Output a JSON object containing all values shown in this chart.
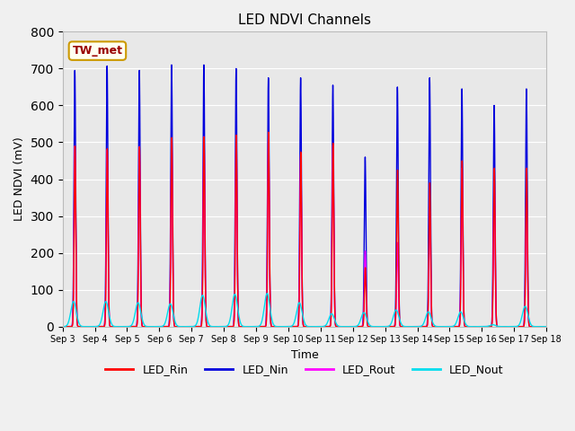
{
  "title": "LED NDVI Channels",
  "xlabel": "Time",
  "ylabel": "LED NDVI (mV)",
  "ylim": [
    0,
    800
  ],
  "background_color": "#f0f0f0",
  "plot_bg_color": "#e8e8e8",
  "annotation_text": "TW_met",
  "annotation_bg": "#fffff0",
  "annotation_border": "#cc9900",
  "annotation_text_color": "#990000",
  "series_colors": {
    "LED_Rin": "#ff0000",
    "LED_Nin": "#0000dd",
    "LED_Rout": "#ff00ff",
    "LED_Nout": "#00ddee"
  },
  "legend_labels": [
    "LED_Rin",
    "LED_Nin",
    "LED_Rout",
    "LED_Nout"
  ],
  "x_tick_labels": [
    "Sep 3",
    "Sep 4",
    "Sep 5",
    "Sep 6",
    "Sep 7",
    "Sep 8",
    "Sep 9",
    "Sep 10",
    "Sep 11",
    "Sep 12",
    "Sep 13",
    "Sep 14",
    "Sep 15",
    "Sep 16",
    "Sep 17",
    "Sep 18"
  ],
  "num_days": 15,
  "peak_heights_Nin": [
    695,
    707,
    695,
    710,
    710,
    700,
    675,
    675,
    655,
    460,
    650,
    675,
    645,
    600,
    645
  ],
  "peak_heights_Rin": [
    490,
    483,
    488,
    513,
    515,
    520,
    528,
    474,
    498,
    160,
    425,
    390,
    450,
    430,
    430
  ],
  "peak_heights_Rout": [
    490,
    480,
    488,
    510,
    515,
    518,
    520,
    470,
    492,
    205,
    228,
    320,
    430,
    395,
    375
  ],
  "peak_heights_Nout": [
    68,
    68,
    65,
    62,
    85,
    88,
    90,
    65,
    35,
    38,
    45,
    40,
    40,
    5,
    55
  ]
}
